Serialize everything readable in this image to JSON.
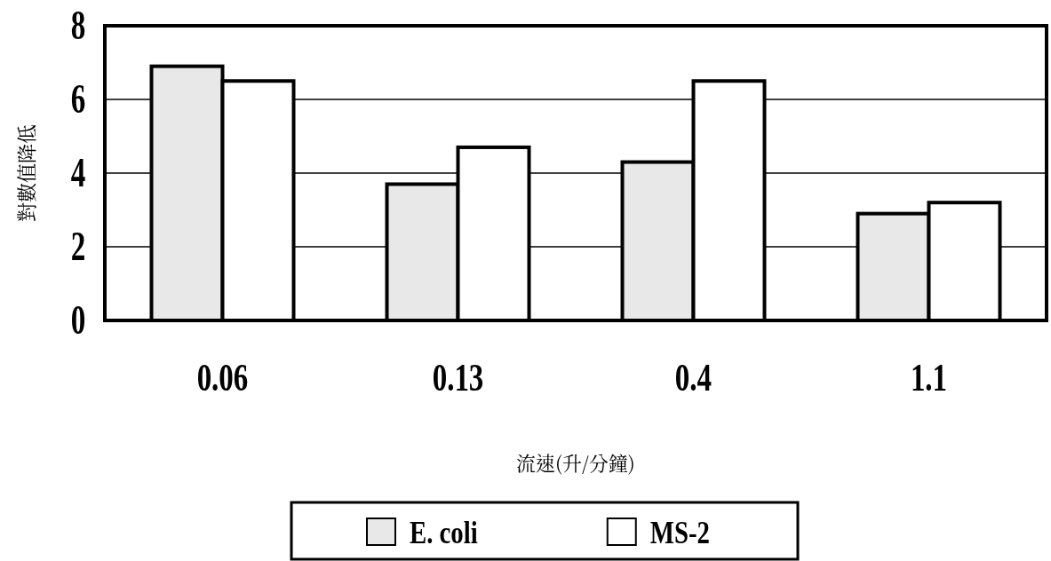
{
  "chart_data": {
    "type": "bar",
    "xlabel": "流速(升/分鐘)",
    "ylabel": "對數值降低",
    "categories": [
      "0.06",
      "0.13",
      "0.4",
      "1.1"
    ],
    "series": [
      {
        "name": "E. coli",
        "color": "#e8e8e8",
        "values": [
          6.9,
          3.7,
          4.3,
          2.9
        ]
      },
      {
        "name": "MS-2",
        "color": "#ffffff",
        "values": [
          6.5,
          4.7,
          6.5,
          3.2
        ]
      }
    ],
    "ylim": [
      0,
      8
    ],
    "yticks": [
      0,
      2,
      4,
      6,
      8
    ],
    "grid": "y",
    "legend": "bottom"
  }
}
